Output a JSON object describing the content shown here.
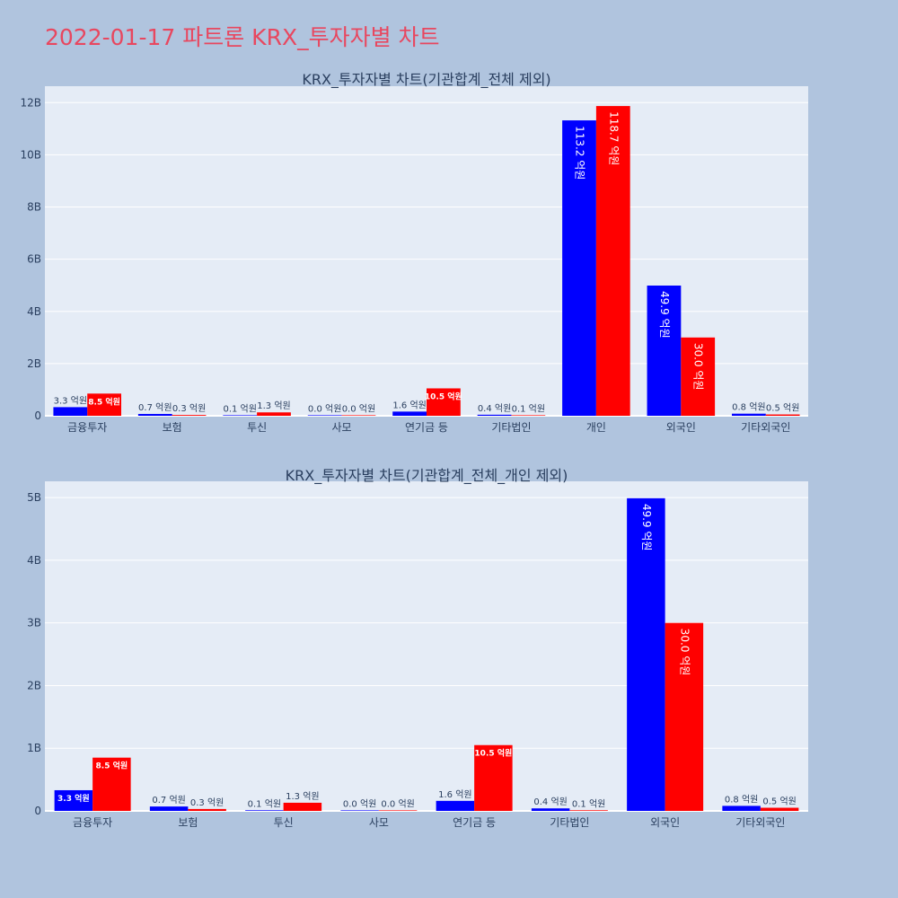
{
  "page": {
    "title": "2022-01-17 파트론 KRX_투자자별 차트"
  },
  "colors": {
    "background": "#b0c4de",
    "plot_bg": "#e5ecf6",
    "title": "#e8475f",
    "series1": "#0000ff",
    "series2": "#ff0000",
    "text": "#2a3f5f"
  },
  "chart_data": [
    {
      "type": "bar",
      "title": "KRX_투자자별 차트(기관합계_전체 제외)",
      "categories": [
        "금융투자",
        "보험",
        "투신",
        "사모",
        "연기금 등",
        "기타법인",
        "개인",
        "외국인",
        "기타외국인"
      ],
      "series": [
        {
          "values": [
            330000000,
            70000000,
            10000000,
            0,
            160000000,
            40000000,
            11320000000,
            4990000000,
            80000000
          ],
          "labels": [
            "3.3 억원",
            "0.7 억원",
            "0.1 억원",
            "0.0 억원",
            "1.6 억원",
            "0.4 억원",
            "113.2 억원",
            "49.9 억원",
            "0.8 억원"
          ]
        },
        {
          "values": [
            850000000,
            30000000,
            130000000,
            0,
            1050000000,
            10000000,
            11870000000,
            3000000000,
            50000000
          ],
          "labels": [
            "8.5 억원",
            "0.3 억원",
            "1.3 억원",
            "0.0 억원",
            "10.5 억원",
            "0.1 억원",
            "118.7 억원",
            "30.0 억원",
            "0.5 억원"
          ]
        }
      ],
      "yticks": [
        "0",
        "2B",
        "4B",
        "6B",
        "8B",
        "10B",
        "12B"
      ],
      "ytick_values": [
        0,
        2000000000,
        4000000000,
        6000000000,
        8000000000,
        10000000000,
        12000000000
      ],
      "ylim": [
        0,
        12630000000
      ],
      "grid": true
    },
    {
      "type": "bar",
      "title": "KRX_투자자별 차트(기관합계_전체_개인 제외)",
      "categories": [
        "금융투자",
        "보험",
        "투신",
        "사모",
        "연기금 등",
        "기타법인",
        "외국인",
        "기타외국인"
      ],
      "series": [
        {
          "values": [
            330000000,
            70000000,
            10000000,
            0,
            160000000,
            40000000,
            4990000000,
            80000000
          ],
          "labels": [
            "3.3 억원",
            "0.7 억원",
            "0.1 억원",
            "0.0 억원",
            "1.6 억원",
            "0.4 억원",
            "49.9 억원",
            "0.8 억원"
          ]
        },
        {
          "values": [
            850000000,
            30000000,
            130000000,
            0,
            1050000000,
            10000000,
            3000000000,
            50000000
          ],
          "labels": [
            "8.5 억원",
            "0.3 억원",
            "1.3 억원",
            "0.0 억원",
            "10.5 억원",
            "0.1 억원",
            "30.0 억원",
            "0.5 억원"
          ]
        }
      ],
      "yticks": [
        "0",
        "1B",
        "2B",
        "3B",
        "4B",
        "5B"
      ],
      "ytick_values": [
        0,
        1000000000,
        2000000000,
        3000000000,
        4000000000,
        5000000000
      ],
      "ylim": [
        0,
        5260000000
      ],
      "grid": true
    }
  ]
}
